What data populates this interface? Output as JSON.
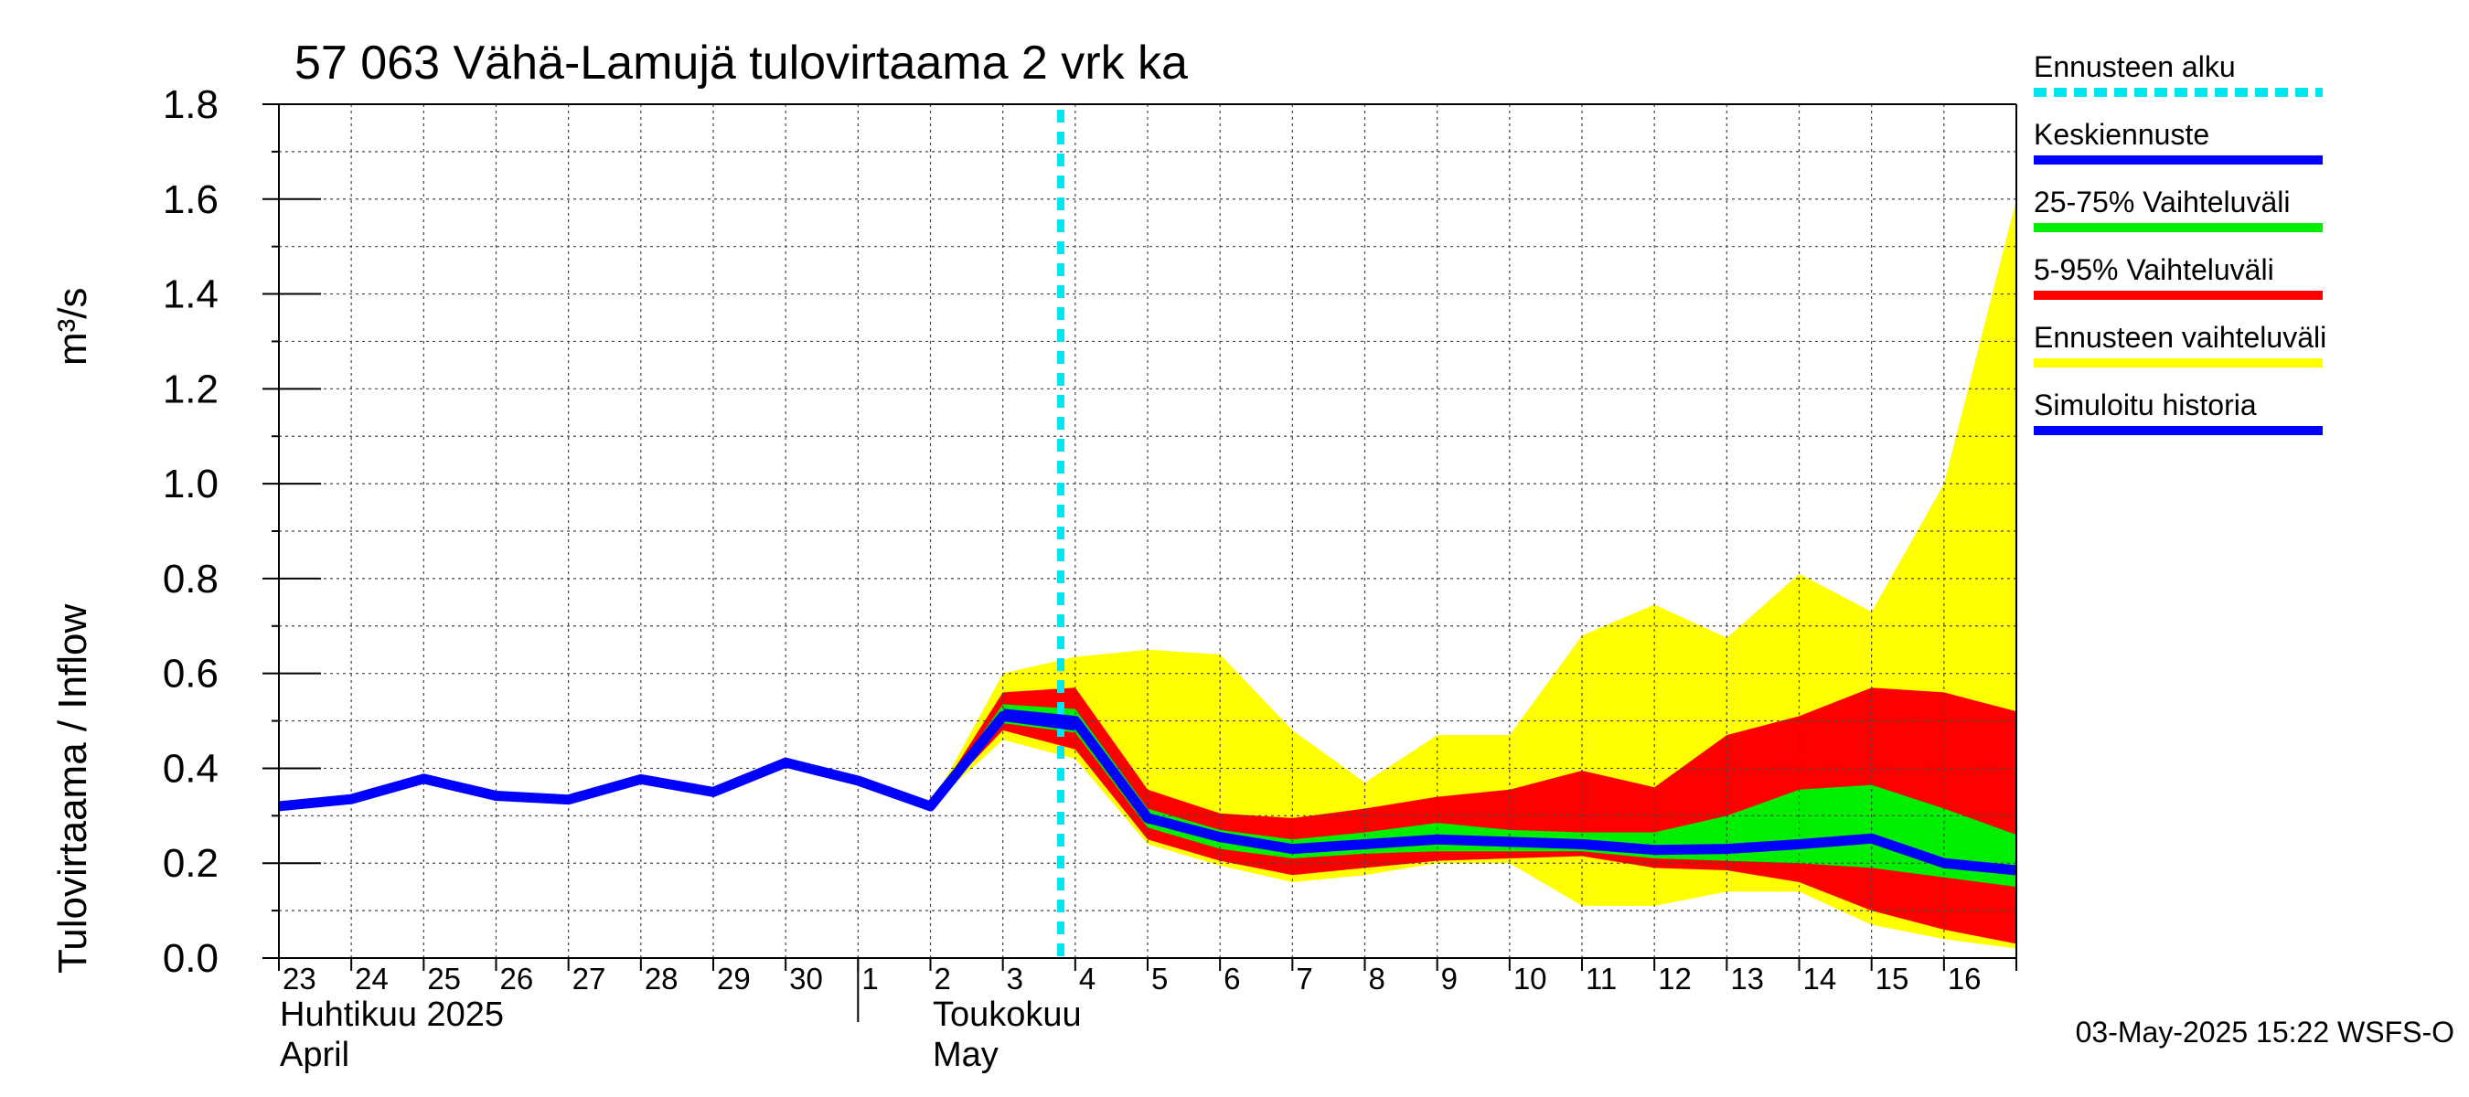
{
  "chart_data": {
    "type": "area",
    "title": "57 063 Vähä-Lamujä tulovirtaama 2 vrk ka",
    "ylabel": "Tulovirtaama / Inflow",
    "yunit": "m³/s",
    "ylim": [
      0,
      1.8
    ],
    "yticks": [
      "0.0",
      "0.2",
      "0.4",
      "0.6",
      "0.8",
      "1.0",
      "1.2",
      "1.4",
      "1.6",
      "1.8"
    ],
    "grid": true,
    "x_start_day": 23,
    "x_end_day": 47,
    "day_labels": [
      "23",
      "24",
      "25",
      "26",
      "27",
      "28",
      "29",
      "30",
      "1",
      "2",
      "3",
      "4",
      "5",
      "6",
      "7",
      "8",
      "9",
      "10",
      "11",
      "12",
      "13",
      "14",
      "15",
      "16"
    ],
    "month_labels": [
      {
        "fi": "Huhtikuu  2025",
        "en": "April",
        "at_day": 23
      },
      {
        "fi": "Toukokuu",
        "en": "May",
        "at_day": 31
      }
    ],
    "month_separator_day": 31,
    "forecast_start_day": 33.8,
    "history": {
      "name": "Simuloitu historia",
      "x": [
        23,
        24,
        25,
        26,
        27,
        28,
        29,
        30,
        31,
        32,
        33,
        34
      ],
      "y": [
        0.32,
        0.335,
        0.378,
        0.342,
        0.334,
        0.377,
        0.35,
        0.412,
        0.374,
        0.32,
        0.51,
        0.49
      ]
    },
    "forecast_x": [
      32,
      33,
      34,
      35,
      36,
      37,
      38,
      39,
      40,
      41,
      42,
      43,
      44,
      45,
      46,
      47
    ],
    "bands": [
      {
        "name": "Ennusteen vaihteluväli",
        "color": "#ffff00",
        "upper": [
          0.32,
          0.6,
          0.635,
          0.65,
          0.64,
          0.48,
          0.37,
          0.47,
          0.47,
          0.68,
          0.745,
          0.675,
          0.81,
          0.73,
          1.0,
          1.6
        ],
        "lower": [
          0.32,
          0.46,
          0.42,
          0.24,
          0.195,
          0.16,
          0.175,
          0.2,
          0.2,
          0.11,
          0.11,
          0.14,
          0.14,
          0.07,
          0.04,
          0.02
        ]
      },
      {
        "name": "5-95% Vaihteluväli",
        "color": "#ff0000",
        "upper": [
          0.32,
          0.56,
          0.57,
          0.355,
          0.305,
          0.295,
          0.315,
          0.34,
          0.355,
          0.395,
          0.36,
          0.47,
          0.51,
          0.57,
          0.56,
          0.52
        ],
        "lower": [
          0.32,
          0.48,
          0.44,
          0.25,
          0.205,
          0.175,
          0.19,
          0.205,
          0.21,
          0.215,
          0.19,
          0.185,
          0.16,
          0.1,
          0.06,
          0.03
        ]
      },
      {
        "name": "25-75% Vaihteluväli",
        "color": "#00ee00",
        "upper": [
          0.32,
          0.535,
          0.525,
          0.315,
          0.27,
          0.25,
          0.265,
          0.285,
          0.27,
          0.265,
          0.265,
          0.3,
          0.355,
          0.365,
          0.315,
          0.26
        ],
        "lower": [
          0.32,
          0.495,
          0.475,
          0.275,
          0.23,
          0.21,
          0.22,
          0.225,
          0.225,
          0.225,
          0.21,
          0.205,
          0.2,
          0.19,
          0.17,
          0.15
        ]
      }
    ],
    "median": {
      "name": "Keskiennuste",
      "color": "#0000ff",
      "x": [
        33,
        34,
        35,
        36,
        37,
        38,
        39,
        40,
        41,
        42,
        43,
        44,
        45,
        46,
        47
      ],
      "y": [
        0.515,
        0.5,
        0.295,
        0.255,
        0.23,
        0.24,
        0.25,
        0.245,
        0.24,
        0.228,
        0.23,
        0.24,
        0.252,
        0.2,
        0.185
      ]
    },
    "legend": [
      {
        "label": "Ennusteen alku",
        "color": "#00e5ee",
        "style": "dashed"
      },
      {
        "label": "Keskiennuste",
        "color": "#0000ff",
        "style": "solid"
      },
      {
        "label": "25-75% Vaihteluväli",
        "color": "#00ee00",
        "style": "solid"
      },
      {
        "label": "5-95% Vaihteluväli",
        "color": "#ff0000",
        "style": "solid"
      },
      {
        "label": "Ennusteen vaihteluväli",
        "color": "#ffff00",
        "style": "solid"
      },
      {
        "label": "Simuloitu historia",
        "color": "#0000ff",
        "style": "solid"
      }
    ],
    "forecast_line_color": "#00e5ee",
    "footer": "03-May-2025 15:22 WSFS-O"
  }
}
